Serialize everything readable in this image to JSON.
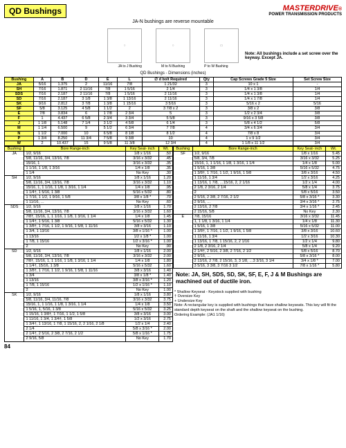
{
  "title": "QD Bushings",
  "brand": {
    "name": "MASTERDRIVE",
    "subtitle": "POWER TRANSMISSION PRODUCTS"
  },
  "subtitle": "JA-N bushings are reverse mountable",
  "diagramLabels": [
    "JA to J Bushing",
    "M to N Bushing",
    "P to W Bushing"
  ],
  "noteRight": "Note: All bushings include a set screw over the keyway. Except JA.",
  "caption": "QD Bushings - Dimensions (inches)",
  "mainHeaders": [
    "Bushing",
    "A",
    "B",
    "D",
    "E",
    "L",
    "∅ d bolt Required",
    "Qty",
    "Cap Screws Grade 5 Size",
    "Set Screw Size"
  ],
  "mainRows": [
    [
      "JA",
      "5/16",
      "1.375",
      "2",
      "11/16",
      "7/8",
      "1 21/32",
      "3",
      "10 x 1",
      "-"
    ],
    [
      "SH",
      "7/16",
      "1.871",
      "2 11/16",
      "7/8",
      "1 5/16",
      "2 1/4",
      "3",
      "1/4 x 1 3/8",
      "1/4"
    ],
    [
      "SDS",
      "7/16",
      "2.187",
      "2 11/16",
      "7/8",
      "1 5/16",
      "2 11/16",
      "3",
      "1/4 x 1 3/8",
      "1/4"
    ],
    [
      "SD",
      "7/16",
      "2.187",
      "3 1/8",
      "1 3/8",
      "1 13/16",
      "2 11/16",
      "3",
      "1/4 x 1 7/8",
      "1/4"
    ],
    [
      "SK",
      "9/16",
      "2.812",
      "3 7/8",
      "1 3/8",
      "1 15/16",
      "3 5/16",
      "3",
      "5/16 x 2",
      "5/16"
    ],
    [
      "SF",
      "5/8",
      "3.125",
      "4 5/8",
      "1 1/2",
      "2",
      "3 7/8 x 2",
      "3",
      "3/8 x 2",
      "3/8"
    ],
    [
      "E",
      "7/8",
      "3.834",
      "6",
      "1 7/8",
      "2 3/4",
      "5",
      "3",
      "1/2 x 2 3/4",
      "3/8"
    ],
    [
      "F",
      "1",
      "4.437",
      "6 5/8",
      "2 3/4",
      "3 3/4",
      "5 5/8",
      "3",
      "9/16 x 3 5/8",
      "3/8"
    ],
    [
      "J",
      "1 1/8",
      "5.148",
      "7 1/4",
      "3 1/2",
      "4 5/8",
      "6 1/4",
      "3",
      "5/8 x 4 1/2",
      "5/8"
    ],
    [
      "M",
      "1 1/4",
      "6.500",
      "9",
      "5 1/2",
      "6 3/4",
      "7 7/8",
      "4",
      "3/4 x 6 3/4",
      "3/4"
    ],
    [
      "N",
      "1 1/2",
      "7.000",
      "10",
      "6 5/8",
      "8 1/8",
      "8 1/2",
      "4",
      "7/8 x 8",
      "3/4"
    ],
    [
      "P",
      "1 3/4",
      "8.250",
      "11 3/4",
      "7 5/8",
      "9 3/8",
      "10",
      "4",
      "1 x 9 1/2",
      "3/4"
    ],
    [
      "W",
      "2",
      "10.437",
      "15",
      "9 5/8",
      "11 3/8",
      "12 3/4",
      "4",
      "1 1/8 x 11 1/2",
      "3/4"
    ]
  ],
  "boreHeaders": [
    "Bushing",
    "Bore Range-inch",
    "Key Seat- inch",
    "Wt."
  ],
  "boreLeft": [
    {
      "code": "JA",
      "rows": [
        [
          "1/2, 9/16",
          "1/8 x 1/16",
          ".50"
        ],
        [
          "5/8, 11/16, 3/4, 13/16, 7/8",
          "3/16 x 3/32",
          ".45"
        ],
        [
          "15/16, 1",
          "3/16 x 3/32",
          ".35"
        ],
        [
          "1 1/16, 1 1/8, 1 3/16",
          "1/4 x 1/8",
          ".35"
        ],
        [
          "1 1/4",
          "No Key",
          ".30"
        ]
      ]
    },
    {
      "code": "SH",
      "rows": [
        [
          "1/2, 9/16",
          "1/8 x 1/16",
          "1.20"
        ],
        [
          "5/8, 11/16, 3/4, 13/16, 7/8",
          "3/16 x 3/32",
          "1.10"
        ],
        [
          "15/16, 1, 1 1/16, 1 1/8, 1 3/16, 1 1/4",
          "1/4 x 1/8",
          ".95"
        ],
        [
          "1 1/4†, 1 5/16, 1 3/8",
          "5/16 x 5/32",
          ".80"
        ],
        [
          "1 7/16, 1 1/2, 1 9/16, 1 5/8",
          "3/8 x 1/8 *",
          ".70"
        ],
        [
          "1 11/16, …",
          "No Key",
          ".60"
        ]
      ]
    },
    {
      "code": "SDS",
      "rows": [
        [
          "1/2, 9/16",
          "1/8 x 1/16",
          "1.70"
        ],
        [
          "5/8, 11/16, 3/4, 13/16, 7/8",
          "3/16 x 3/32",
          "1.60"
        ],
        [
          "7/8†, 15/16, 1, 1 1/16, 1 1/8, 1 3/16, 1 1/4",
          "1/4 x 1/8",
          "1.45"
        ],
        [
          "1 1/4†, 1 5/16, 1 3/8",
          "5/16 x 5/32",
          "1.30"
        ],
        [
          "1 3/8†, 1 7/16, 1 1/2, 1 9/16, 1 5/8, 1 11/16",
          "3/8 x 3/16",
          "1.10"
        ],
        [
          "1 3/4, 1 13/16",
          "3/8 x 1/16 *",
          "1.00"
        ],
        [
          "1 13/16",
          "1/2 x 1/8 *",
          "1.00"
        ],
        [
          "1 7/8, 1 15/16",
          "1/2 x 3/16 *",
          "1.00"
        ],
        [
          "2",
          "No Key",
          ".90"
        ]
      ]
    },
    {
      "code": "SD",
      "rows": [
        [
          "1/2, 9/16",
          "1/8 x 1/16",
          "2.00"
        ],
        [
          "5/8, 11/16, 3/4, 13/16, 7/8",
          "3/16 x 3/32",
          "2.00"
        ],
        [
          "7/8†, 15/16, 1, 1 1/16, 1 1/8, 1 3/16, 1 1/4",
          "1/4 x 1/8",
          "1.80"
        ],
        [
          "1 1/4†, 15/16, 1 3/8",
          "5/16 x 5/32",
          "1.60"
        ],
        [
          "1 3/8†, 1 7/16, 1 1/2, 1 9/16, 1 5/8, 1 11/16",
          "3/8 x 3/16",
          "1.40"
        ],
        [
          "1 3/4",
          "3/8 x 1/8 *",
          "1.40"
        ],
        [
          "1 13/16",
          "3/8 x 3/16 *",
          "1.20"
        ],
        [
          "1 7/8, 1 15/16",
          "1/2 x 1/16 *",
          "1.10"
        ],
        [
          "2",
          "No Key",
          "1.00"
        ]
      ]
    },
    {
      "code": "SK",
      "rows": [
        [
          "1/2, 9/16",
          "1/8 x 1/16",
          "3.80"
        ],
        [
          "5/8, 11/16, 3/4, 11/16, 7/8",
          "3/16 x 3/32",
          "3.75"
        ],
        [
          "15/16, 1, 1 1/16, 1 1/8, 1 3/16, 1 1/4",
          "1/4 x 1/8",
          "3.50"
        ],
        [
          "1 5/16, 1, 5/16, 1 3/8",
          "5/16 x 5/32",
          "3.25"
        ],
        [
          "1 15/16, 1 3/8†, 1 7/16, 1 1/2, 1 5/8",
          "3/8 x 3/16",
          "3.00"
        ],
        [
          "1 11/16, 1 3/4, 1 3/4†, 1 5/8",
          "1/2 x 3/16",
          "2.75"
        ],
        [
          "1 3/4†, 1 13/16, 1 7/8, 1 15/16, 2, 2 1/16, 2 1/8",
          "1/2 x 1/4",
          "2.40"
        ],
        [
          "2 1/4",
          "5/8 x 3/16 *",
          "2.00"
        ],
        [
          "2 1/4†, 2 5/16, 2 3/8, 2 7/16, 2 1/2",
          "5/8 x 1/16 *",
          "1.75"
        ],
        [
          "2 9/16, 5/8",
          "No Key",
          "1.70"
        ]
      ]
    }
  ],
  "boreRight": [
    {
      "code": "SF",
      "rows": [
        [
          "1/2, 9/16",
          "1/8 x 1/16",
          "5.45"
        ],
        [
          "5/8, 3/4, 7/8",
          "3/16 x 3/32",
          "5.25"
        ],
        [
          "15/16, 1, 1 1/16, 1 1/8, 1 3/16, 1 1/4",
          "1/4 x 1/8",
          "5.00"
        ],
        [
          "1 5/16, 1 3/8",
          "5/16 x 5/32",
          "4.75"
        ],
        [
          "1 3/8†, 1 7/16, 1 1/2, 1 9/16, 1 5/8",
          "3/8 x 3/16",
          "4.50"
        ],
        [
          "1 11/16, 1 3/4",
          "1/2 x 3/16",
          "4.25"
        ],
        [
          "1 13/16, 1 7/8, …15/16, 2, 2 1/16",
          "1/2 x 1/4",
          "4.00"
        ],
        [
          "2 1/8, 2 3/16, 2 1/4",
          "5/8 x 1/4",
          "3.75"
        ],
        [
          "2",
          "5/8 x 5/16",
          "3.50"
        ],
        [
          "2 5/16, 2 3/8, 2 7/16, 2 1/2",
          "5/8 x 3/16 *",
          "3.30"
        ],
        [
          "2 9/16, …",
          "3/4 x 3/16 *",
          "2.75"
        ],
        [
          "2 13/16, 2 7/8",
          "3/4 x 1/16 *",
          "2.45"
        ],
        [
          "2 15/16, 5/8",
          "No Key",
          "2.30"
        ]
      ]
    },
    {
      "code": "E",
      "rows": [
        [
          "7/8, 15/16",
          "3/16 x 3/32",
          "11.45"
        ],
        [
          "1, 1 1/8, 1 3/16, 1 1/4",
          "1/4 x 1/8",
          "11.30"
        ],
        [
          "1 5/16, 1 3/8",
          "5/16 x 5/32",
          "11.00"
        ],
        [
          "1 3/8†, 1 7/16, 1 1/2, 1 9/16, 1 5/8",
          "3/8 x 3/16",
          "10.60"
        ],
        [
          "1 11/16, 1 3/4",
          "1/2 x 3/16",
          "10.30"
        ],
        [
          "1 13/16, 1 7/8, 1 15/16, 2, 2 1/16",
          "1/2 x 1/4",
          "9.80"
        ],
        [
          "2 1/8, 2 3/16, 2 1/4",
          "5/8 x 1/4",
          "9.20"
        ],
        [
          "2 1/4†, 2 5/16, 2 3/8, 2 7/16, 2 1/2",
          "5/8 x 5/16",
          "8.70"
        ],
        [
          "2 9/16, …",
          "5/8 x 3/16 *",
          "8.00"
        ],
        [
          "2 13/16, 2 7/8, 2 15/16, 3, 3 1/8, …3 3/16, 3 1/4",
          "3/4 x 1/8 *",
          "7.00"
        ],
        [
          "3 5/16, 3 3/8, 3 7/16 3 1/2",
          "7/8 x 1/16 *",
          "5.80"
        ]
      ]
    }
  ],
  "noteBox": "Note: JA, SH, SDS, SD, SK, SF, E, F, J & M Bushings are machined out of ductile iron.",
  "legend": [
    "* Shallow Keyseat - Keystock supplied with bushing",
    "† Oversize Key",
    "+ Undersize Key",
    "Note: A rectangular key is supplied with bushings that have shallow keyseats. This key will fit the standard depth keyseat on the shaft and the shallow keyseat on the bushing.",
    "Ordering Example: (JA1 1/16)"
  ],
  "pageNum": "84"
}
